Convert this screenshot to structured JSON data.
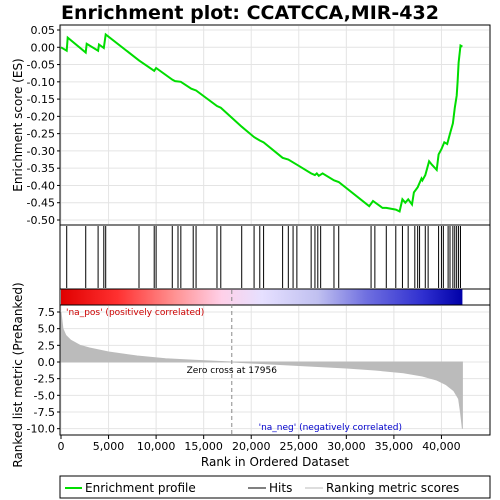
{
  "chart_data": {
    "type": "line",
    "title": "Enrichment plot: CCATCCA,MIR-432",
    "xlabel": "Rank in Ordered Dataset",
    "panels": {
      "enrichment": {
        "ylabel": "Enrichment score (ES)",
        "ylim": [
          -0.5,
          0.05
        ],
        "yticks": [
          0.05,
          0.0,
          -0.05,
          -0.1,
          -0.15,
          -0.2,
          -0.25,
          -0.3,
          -0.35,
          -0.4,
          -0.45,
          -0.5
        ],
        "ytick_labels": [
          "0.05",
          "0.00",
          "-0.05",
          "-0.10",
          "-0.15",
          "-0.20",
          "-0.25",
          "-0.30",
          "-0.35",
          "-0.40",
          "-0.45",
          "-0.50"
        ],
        "color": "#00dd00",
        "x": [
          0,
          600,
          700,
          2600,
          2700,
          3900,
          4000,
          4500,
          4700,
          8200,
          8300,
          9800,
          10000,
          11700,
          12000,
          12600,
          13700,
          14200,
          16400,
          16800,
          19000,
          20300,
          20900,
          21300,
          23300,
          23900,
          24800,
          26300,
          26700,
          26900,
          27100,
          27500,
          28700,
          29200,
          32400,
          32800,
          33800,
          34200,
          35200,
          35600,
          35900,
          36200,
          36500,
          36900,
          37100,
          37500,
          37900,
          38000,
          38300,
          38700,
          39000,
          39500,
          39700,
          40000,
          40300,
          40600,
          40900,
          41200,
          41400,
          41600,
          41700,
          41800,
          42000,
          42200
        ],
        "y": [
          0.0,
          -0.01,
          0.028,
          -0.015,
          0.01,
          -0.01,
          0.008,
          -0.002,
          0.037,
          -0.038,
          -0.04,
          -0.068,
          -0.06,
          -0.094,
          -0.098,
          -0.1,
          -0.12,
          -0.125,
          -0.17,
          -0.175,
          -0.23,
          -0.26,
          -0.27,
          -0.275,
          -0.32,
          -0.325,
          -0.34,
          -0.365,
          -0.37,
          -0.365,
          -0.372,
          -0.365,
          -0.385,
          -0.39,
          -0.46,
          -0.445,
          -0.465,
          -0.465,
          -0.47,
          -0.475,
          -0.44,
          -0.45,
          -0.44,
          -0.455,
          -0.42,
          -0.405,
          -0.38,
          -0.385,
          -0.37,
          -0.33,
          -0.34,
          -0.355,
          -0.31,
          -0.295,
          -0.275,
          -0.28,
          -0.25,
          -0.22,
          -0.175,
          -0.14,
          -0.1,
          -0.045,
          0.005,
          0.002
        ]
      },
      "hits": {
        "positions": [
          600,
          2600,
          3900,
          4500,
          4700,
          8200,
          9800,
          10000,
          11700,
          12300,
          12600,
          13900,
          14200,
          16400,
          16800,
          19000,
          20300,
          20900,
          21300,
          23300,
          23900,
          24400,
          24800,
          26300,
          26700,
          27000,
          27300,
          28700,
          29200,
          32600,
          33000,
          34200,
          35200,
          35900,
          36500,
          37200,
          37500,
          37700,
          38300,
          38600,
          39700,
          40000,
          40200,
          40700,
          40900,
          41200,
          41400,
          41600,
          41800,
          42000
        ]
      },
      "ranked_metric": {
        "ylabel": "Ranked list metric (PreRanked)",
        "ylim": [
          -10.8,
          8.4
        ],
        "yticks": [
          7.5,
          5.0,
          2.5,
          0.0,
          -2.5,
          -5.0,
          -7.5,
          -10.0
        ],
        "ytick_labels": [
          "7.5",
          "5.0",
          "2.5",
          "0.0",
          "-2.5",
          "-5.0",
          "-7.5",
          "-10.0"
        ],
        "x": [
          0,
          200,
          500,
          1000,
          2000,
          3000,
          5000,
          8000,
          11000,
          14000,
          17956,
          22000,
          26000,
          30000,
          33000,
          36000,
          38000,
          39500,
          40500,
          41300,
          41800,
          42000,
          42200
        ],
        "values": [
          7.5,
          5.0,
          4.0,
          3.3,
          2.5,
          2.1,
          1.5,
          0.9,
          0.5,
          0.25,
          0.0,
          -0.3,
          -0.6,
          -0.9,
          -1.2,
          -1.6,
          -2.1,
          -2.7,
          -3.4,
          -4.3,
          -5.5,
          -7.5,
          -10.0
        ],
        "color": "#bbbbbb"
      }
    },
    "xticks": [
      0,
      5000,
      10000,
      15000,
      20000,
      25000,
      30000,
      35000,
      40000
    ],
    "xtick_labels": [
      "0",
      "5,000",
      "10,000",
      "15,000",
      "20,000",
      "25,000",
      "30,000",
      "35,000",
      "40,000"
    ],
    "xlim": [
      0,
      45000
    ],
    "zero_cross": 17956,
    "annotations": {
      "pos": "'na_pos' (positively correlated)",
      "neg": "'na_neg' (negatively correlated)",
      "zero": "Zero cross at 17956"
    },
    "legend": {
      "items": [
        "Enrichment profile",
        "Hits",
        "Ranking metric scores"
      ],
      "placement": "bottom"
    }
  }
}
